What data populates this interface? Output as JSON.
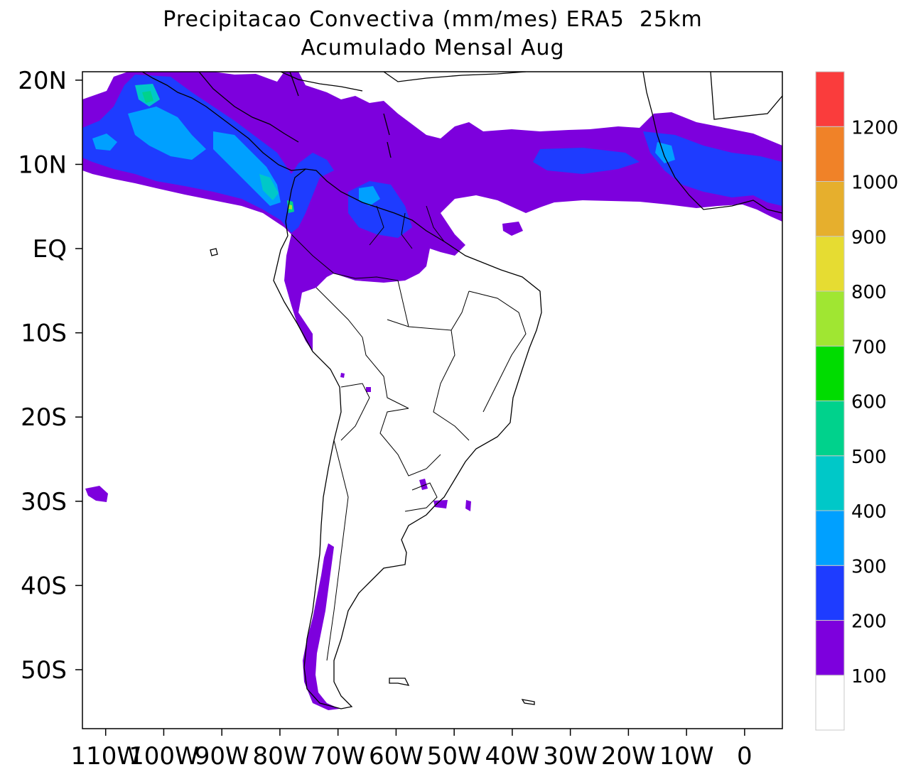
{
  "title": {
    "line1": "Precipitacao Convectiva (mm/mes) ERA5  25km",
    "line2": "Acumulado Mensal Aug"
  },
  "map": {
    "region": "South America",
    "variable": "Convective precipitation",
    "units": "mm/mes",
    "month": "Aug",
    "lon_range": [
      -114,
      6.5
    ],
    "lat_range": [
      -57,
      21
    ],
    "lat_ticks": [
      {
        "lat": 20,
        "label": "20N"
      },
      {
        "lat": 10,
        "label": "10N"
      },
      {
        "lat": 0,
        "label": "EQ"
      },
      {
        "lat": -10,
        "label": "10S"
      },
      {
        "lat": -20,
        "label": "20S"
      },
      {
        "lat": -30,
        "label": "30S"
      },
      {
        "lat": -40,
        "label": "40S"
      },
      {
        "lat": -50,
        "label": "50S"
      }
    ],
    "lon_ticks": [
      {
        "lon": -110,
        "label": "110W"
      },
      {
        "lon": -100,
        "label": "100W"
      },
      {
        "lon": -90,
        "label": "90W"
      },
      {
        "lon": -80,
        "label": "80W"
      },
      {
        "lon": -70,
        "label": "70W"
      },
      {
        "lon": -60,
        "label": "60W"
      },
      {
        "lon": -50,
        "label": "50W"
      },
      {
        "lon": -40,
        "label": "40W"
      },
      {
        "lon": -30,
        "label": "30W"
      },
      {
        "lon": -20,
        "label": "20W"
      },
      {
        "lon": -10,
        "label": "10W"
      },
      {
        "lon": 0,
        "label": "0"
      }
    ]
  },
  "colorbar": {
    "boxes": [
      {
        "color": "#ffffff"
      },
      {
        "color": "#7d00dd",
        "label": "100"
      },
      {
        "color": "#1e3cff",
        "label": "200"
      },
      {
        "color": "#00a0ff",
        "label": "300"
      },
      {
        "color": "#00c8c8",
        "label": "400"
      },
      {
        "color": "#00d28c",
        "label": "500"
      },
      {
        "color": "#00dc00",
        "label": "600"
      },
      {
        "color": "#a0e632",
        "label": "700"
      },
      {
        "color": "#e6dc32",
        "label": "800"
      },
      {
        "color": "#e6af2d",
        "label": "900"
      },
      {
        "color": "#f08228",
        "label": "1000"
      },
      {
        "color": "#fa3c3c",
        "label": "1200"
      }
    ]
  }
}
